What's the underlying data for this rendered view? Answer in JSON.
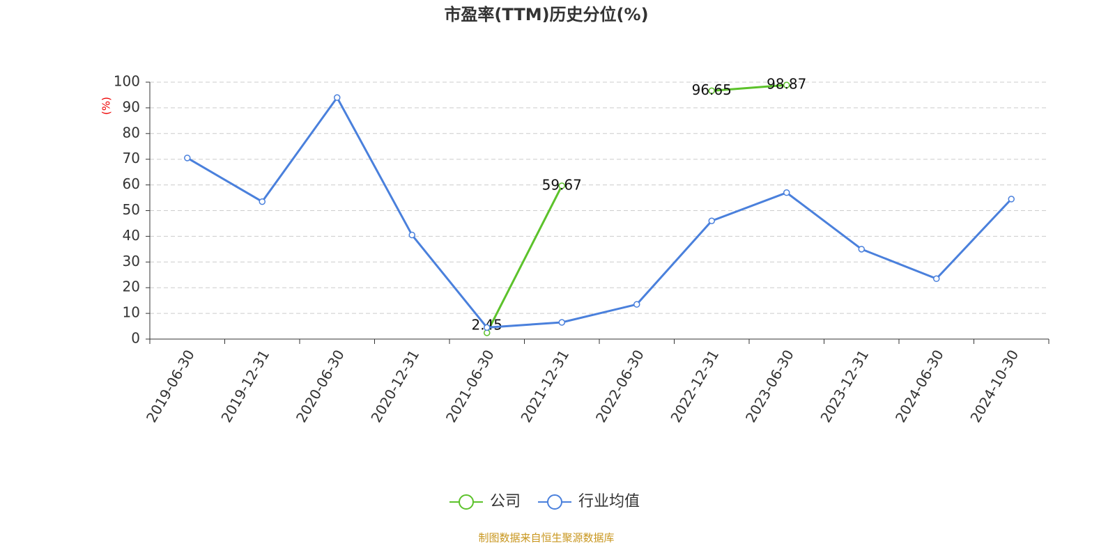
{
  "chart_data": {
    "type": "line",
    "title": "市盈率(TTM)历史分位(%)",
    "y_label": "(%)",
    "categories": [
      "2019-06-30",
      "2019-12-31",
      "2020-06-30",
      "2020-12-31",
      "2021-06-30",
      "2021-12-31",
      "2022-06-30",
      "2022-12-31",
      "2023-06-30",
      "2023-12-31",
      "2024-06-30",
      "2024-10-30"
    ],
    "series": [
      {
        "name": "公司",
        "color": "#5cc22b",
        "labels": true,
        "values": [
          null,
          null,
          null,
          null,
          2.45,
          59.67,
          null,
          96.65,
          98.87,
          null,
          null,
          null
        ]
      },
      {
        "name": "行业均值",
        "color": "#4a80dc",
        "labels": false,
        "values": [
          70.5,
          53.5,
          94,
          40.5,
          4.5,
          6.5,
          13.5,
          46,
          57,
          35,
          23.5,
          54.5
        ]
      }
    ],
    "ylim": [
      0,
      100
    ],
    "yticks": [
      0,
      10,
      20,
      30,
      40,
      50,
      60,
      70,
      80,
      90,
      100
    ],
    "grid": true,
    "legend": "bottom",
    "source": "制图数据来自恒生聚源数据库"
  }
}
